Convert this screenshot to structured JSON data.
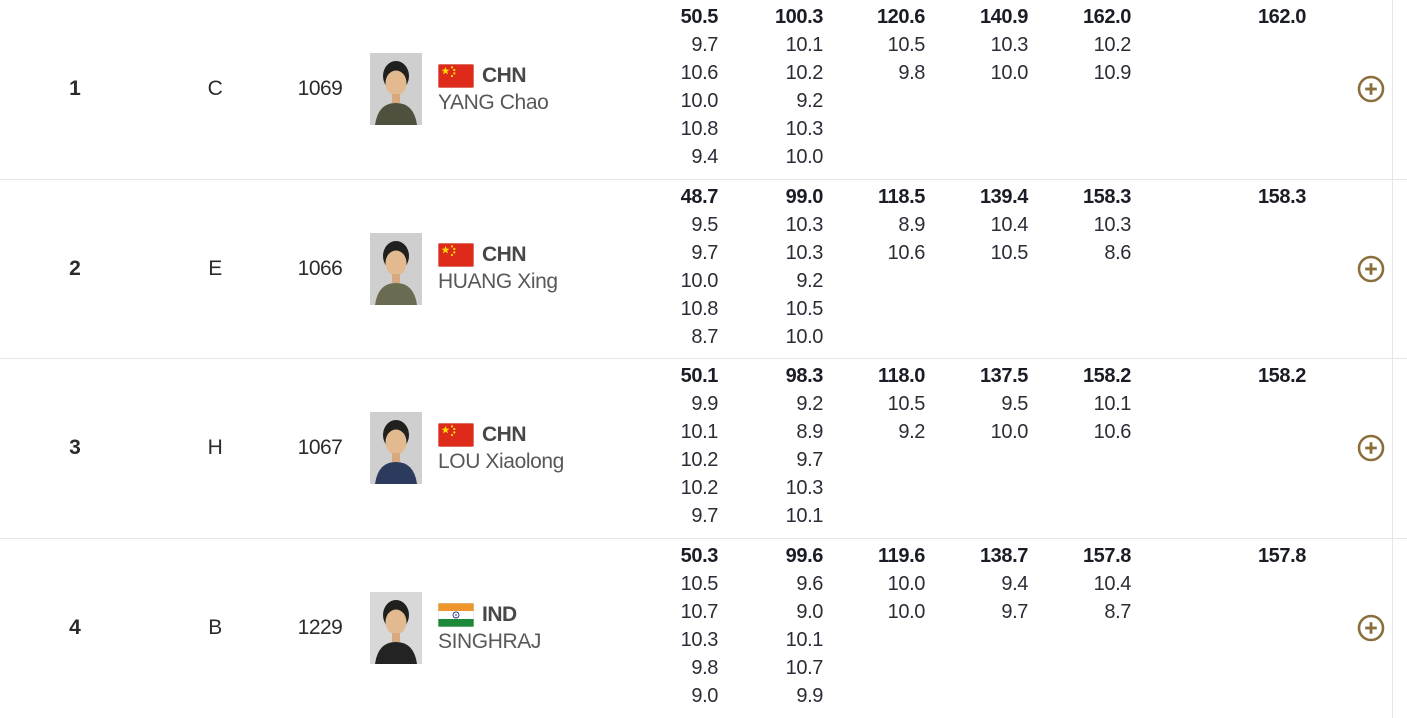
{
  "ui": {
    "background_color": "#ffffff",
    "separator_color": "#e6e6e6",
    "accent_gold": "#8a6f3c",
    "score_text_color": "#2a2d36",
    "total_text_color": "#1b1d26",
    "expand_icon": "plus-circle-icon",
    "flag_colors": {
      "CHN": {
        "field": "#dd2a1b",
        "star": "#ffde00"
      },
      "IND": {
        "saffron": "#f0962e",
        "white": "#ffffff",
        "green": "#1d8a3a",
        "chakra": "#26338e"
      }
    }
  },
  "rows": [
    {
      "rank": "1",
      "firing_point": "C",
      "bib": "1069",
      "country": "CHN",
      "flag": "CHN",
      "name": "YANG Chao",
      "photo": {
        "shirt": "#50503e",
        "bg": "#cfcfcf"
      },
      "series": [
        {
          "total": "50.5",
          "shots": [
            "9.7",
            "10.6",
            "10.0",
            "10.8",
            "9.4"
          ]
        },
        {
          "total": "100.3",
          "shots": [
            "10.1",
            "10.2",
            "9.2",
            "10.3",
            "10.0"
          ]
        },
        {
          "total": "120.6",
          "shots": [
            "10.5",
            "9.8"
          ]
        },
        {
          "total": "140.9",
          "shots": [
            "10.3",
            "10.0"
          ]
        },
        {
          "total": "162.0",
          "shots": [
            "10.2",
            "10.9"
          ]
        }
      ],
      "final_total": "162.0"
    },
    {
      "rank": "2",
      "firing_point": "E",
      "bib": "1066",
      "country": "CHN",
      "flag": "CHN",
      "name": "HUANG Xing",
      "photo": {
        "shirt": "#6b6b52",
        "bg": "#cfcfcf"
      },
      "series": [
        {
          "total": "48.7",
          "shots": [
            "9.5",
            "9.7",
            "10.0",
            "10.8",
            "8.7"
          ]
        },
        {
          "total": "99.0",
          "shots": [
            "10.3",
            "10.3",
            "9.2",
            "10.5",
            "10.0"
          ]
        },
        {
          "total": "118.5",
          "shots": [
            "8.9",
            "10.6"
          ]
        },
        {
          "total": "139.4",
          "shots": [
            "10.4",
            "10.5"
          ]
        },
        {
          "total": "158.3",
          "shots": [
            "10.3",
            "8.6"
          ]
        }
      ],
      "final_total": "158.3"
    },
    {
      "rank": "3",
      "firing_point": "H",
      "bib": "1067",
      "country": "CHN",
      "flag": "CHN",
      "name": "LOU Xiaolong",
      "photo": {
        "shirt": "#2c3a5e",
        "bg": "#cfcfcf"
      },
      "series": [
        {
          "total": "50.1",
          "shots": [
            "9.9",
            "10.1",
            "10.2",
            "10.2",
            "9.7"
          ]
        },
        {
          "total": "98.3",
          "shots": [
            "9.2",
            "8.9",
            "9.7",
            "10.3",
            "10.1"
          ]
        },
        {
          "total": "118.0",
          "shots": [
            "10.5",
            "9.2"
          ]
        },
        {
          "total": "137.5",
          "shots": [
            "9.5",
            "10.0"
          ]
        },
        {
          "total": "158.2",
          "shots": [
            "10.1",
            "10.6"
          ]
        }
      ],
      "final_total": "158.2"
    },
    {
      "rank": "4",
      "firing_point": "B",
      "bib": "1229",
      "country": "IND",
      "flag": "IND",
      "name": "SINGHRAJ",
      "photo": {
        "shirt": "#232323",
        "bg": "#d8d8d8"
      },
      "series": [
        {
          "total": "50.3",
          "shots": [
            "10.5",
            "10.7",
            "10.3",
            "9.8",
            "9.0"
          ]
        },
        {
          "total": "99.6",
          "shots": [
            "9.6",
            "9.0",
            "10.1",
            "10.7",
            "9.9"
          ]
        },
        {
          "total": "119.6",
          "shots": [
            "10.0",
            "10.0"
          ]
        },
        {
          "total": "138.7",
          "shots": [
            "9.4",
            "9.7"
          ]
        },
        {
          "total": "157.8",
          "shots": [
            "10.4",
            "8.7"
          ]
        }
      ],
      "final_total": "157.8"
    }
  ]
}
